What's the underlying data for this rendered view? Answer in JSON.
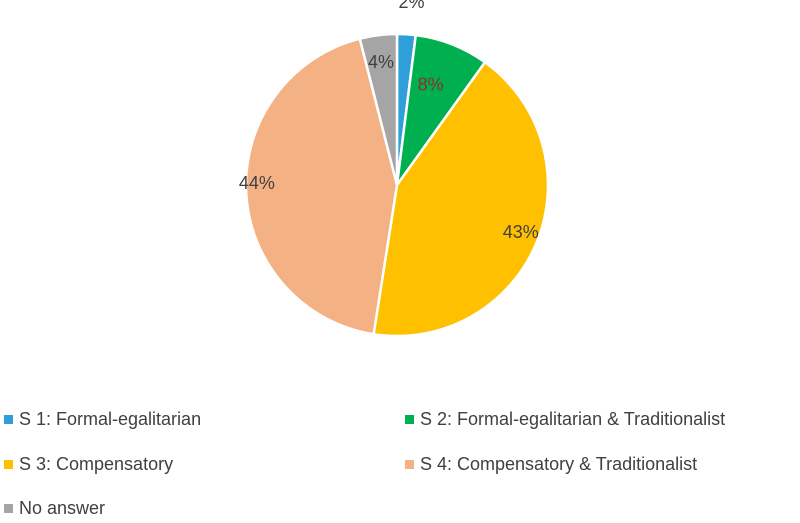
{
  "chart_data": {
    "type": "pie",
    "title": "",
    "legend_position": "bottom",
    "slices": [
      {
        "name": "S 1: Formal-egalitarian",
        "value": 2,
        "label": "2%",
        "color": "#2E9FD9",
        "label_color": "#404040"
      },
      {
        "name": "S 2: Formal-egalitarian & Traditionalist",
        "value": 8,
        "label": "8%",
        "color": "#00B050",
        "label_color": "#8B2E2E"
      },
      {
        "name": "S 3: Compensatory",
        "value": 43,
        "label": "43%",
        "color": "#FFC000",
        "label_color": "#404040"
      },
      {
        "name": "S 4: Compensatory & Traditionalist",
        "value": 44,
        "label": "44%",
        "color": "#F4B183",
        "label_color": "#404040"
      },
      {
        "name": "No answer",
        "value": 4,
        "label": "4%",
        "color": "#A5A5A5",
        "label_color": "#404040"
      }
    ]
  }
}
